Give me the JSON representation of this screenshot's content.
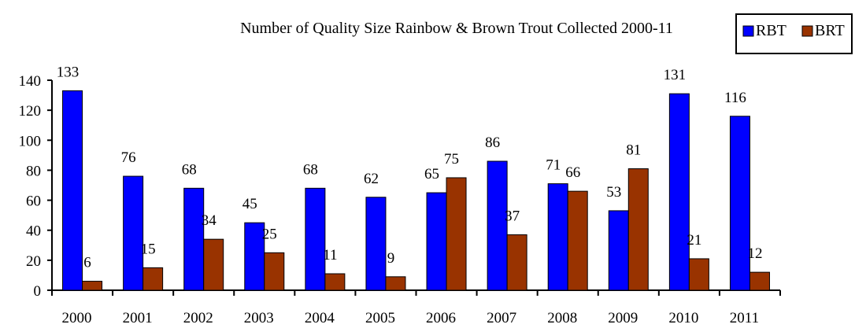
{
  "chart_data": {
    "type": "bar",
    "title": "Number of Quality Size Rainbow & Brown Trout Collected 2000-11",
    "xlabel": "",
    "ylabel": "",
    "categories": [
      "2000",
      "2001",
      "2002",
      "2003",
      "2004",
      "2005",
      "2006",
      "2007",
      "2008",
      "2009",
      "2010",
      "2011"
    ],
    "ylim": [
      0,
      140
    ],
    "yticks": [
      0,
      20,
      40,
      60,
      80,
      100,
      120,
      140
    ],
    "grid": false,
    "legend_position": "top-right",
    "series": [
      {
        "name": "RBT",
        "color": "#0000FF",
        "values": [
          133,
          76,
          68,
          45,
          68,
          62,
          65,
          86,
          71,
          53,
          131,
          116
        ]
      },
      {
        "name": "BRT",
        "color": "#993300",
        "values": [
          6,
          15,
          34,
          25,
          11,
          9,
          75,
          37,
          66,
          81,
          21,
          12
        ]
      }
    ]
  }
}
